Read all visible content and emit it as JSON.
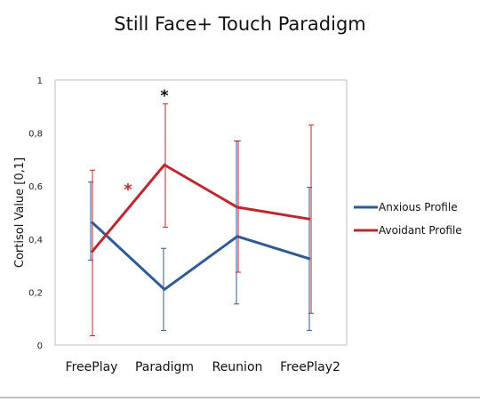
{
  "chart_data": {
    "type": "line",
    "title": "Still Face+ Touch Paradigm",
    "xlabel": "",
    "ylabel": "Cortisol Value  [0,1]",
    "ylim": [
      0,
      1
    ],
    "yticks": [
      "0",
      "0,2",
      "0,4",
      "0,6",
      "0,8",
      "1"
    ],
    "categories": [
      "FreePlay",
      "Paradigm",
      "Reunion",
      "FreePlay2"
    ],
    "legend_position": "right",
    "series": [
      {
        "name": "Anxious Profile",
        "color": "#2e5a95",
        "values": [
          0.465,
          0.21,
          0.41,
          0.325
        ],
        "error_low": [
          0.32,
          0.055,
          0.155,
          0.055
        ],
        "error_high": [
          0.615,
          0.365,
          0.77,
          0.595
        ]
      },
      {
        "name": "Avoidant Profile",
        "color": "#c0262d",
        "values": [
          0.35,
          0.68,
          0.52,
          0.475
        ],
        "error_low": [
          0.035,
          0.445,
          0.275,
          0.12
        ],
        "error_high": [
          0.66,
          0.91,
          0.77,
          0.83
        ]
      }
    ],
    "annotations": [
      {
        "text": "*",
        "category": "Paradigm",
        "y": 0.955,
        "color": "#111111"
      },
      {
        "text": "*",
        "category_between": [
          "FreePlay",
          "Paradigm"
        ],
        "y": 0.6,
        "color": "#c0262d"
      }
    ]
  }
}
